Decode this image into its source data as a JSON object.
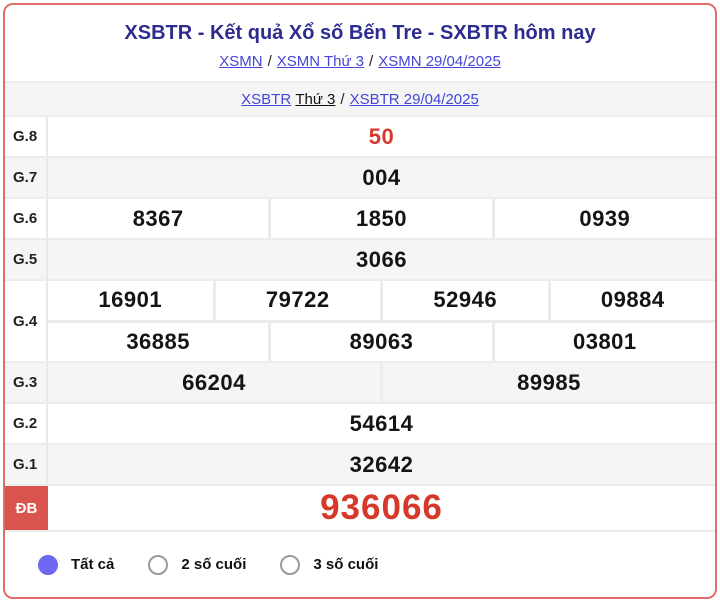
{
  "header": {
    "title": "XSBTR - Kết quả Xổ số Bến Tre - SXBTR hôm nay",
    "breadcrumb1": {
      "links": [
        "XSMN",
        "XSMN Thứ 3",
        "XSMN 29/04/2025"
      ],
      "separator": "/"
    },
    "breadcrumb2": {
      "link_region": "XSBTR",
      "day_text": "Thứ 3",
      "separator": "/",
      "link_date": "XSBTR 29/04/2025"
    }
  },
  "results": {
    "rows": [
      {
        "label": "G.8",
        "groups": [
          [
            "50"
          ]
        ]
      },
      {
        "label": "G.7",
        "groups": [
          [
            "004"
          ]
        ]
      },
      {
        "label": "G.6",
        "groups": [
          [
            "8367",
            "1850",
            "0939"
          ]
        ]
      },
      {
        "label": "G.5",
        "groups": [
          [
            "3066"
          ]
        ]
      },
      {
        "label": "G.4",
        "groups": [
          [
            "16901",
            "79722",
            "52946",
            "09884"
          ],
          [
            "36885",
            "89063",
            "03801"
          ]
        ]
      },
      {
        "label": "G.3",
        "groups": [
          [
            "66204",
            "89985"
          ]
        ]
      },
      {
        "label": "G.2",
        "groups": [
          [
            "54614"
          ]
        ]
      },
      {
        "label": "G.1",
        "groups": [
          [
            "32642"
          ]
        ]
      },
      {
        "label": "ĐB",
        "groups": [
          [
            "936066"
          ]
        ]
      }
    ]
  },
  "filters": {
    "options": [
      {
        "label": "Tất cả",
        "selected": true
      },
      {
        "label": "2 số cuối",
        "selected": false
      },
      {
        "label": "3 số cuối",
        "selected": false
      }
    ]
  },
  "colors": {
    "accent_red": "#d6392a",
    "special_label_bg": "#d9534f",
    "frame_border": "#e26d6d",
    "title_navy": "#2d2d8f",
    "link_blue": "#4545d6",
    "radio_selected": "#6e68f2",
    "alt_row_bg": "#f5f5f6"
  }
}
